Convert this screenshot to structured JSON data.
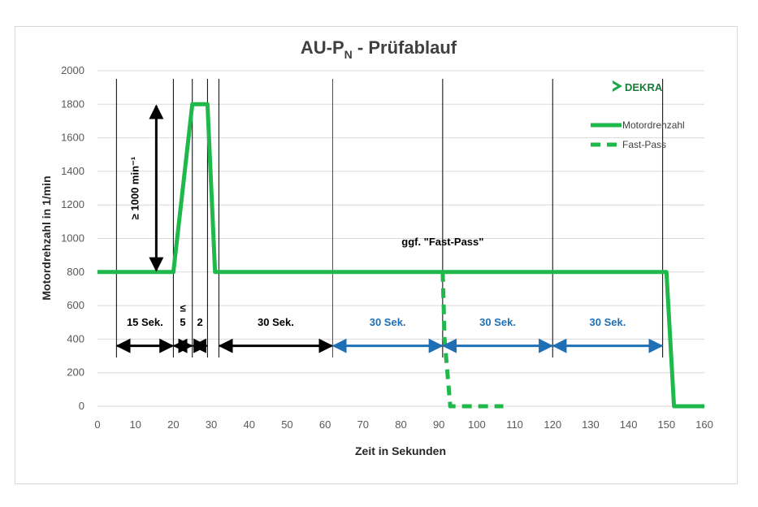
{
  "chart_data": {
    "type": "line",
    "title": {
      "main": "AU-P",
      "sub": "N",
      "rest": " - Prüfablauf"
    },
    "xlabel": "Zeit in Sekunden",
    "ylabel": "Motordrehzahl  in 1/min",
    "xlim": [
      0,
      160
    ],
    "ylim": [
      0,
      2000
    ],
    "xticks": [
      "0",
      "10",
      "20",
      "30",
      "40",
      "50",
      "60",
      "70",
      "80",
      "90",
      "100",
      "110",
      "120",
      "130",
      "140",
      "150",
      "160"
    ],
    "yticks": [
      "0",
      "200",
      "400",
      "600",
      "800",
      "1000",
      "1200",
      "1400",
      "1600",
      "1800",
      "2000"
    ],
    "legend_position": "top-right",
    "logo": "DEKRA",
    "colors": {
      "green": "#1fb84a",
      "blue": "#1f6fb5",
      "black": "#000000",
      "red": "#ff0000"
    },
    "series": [
      {
        "name": "Motordrehzahl",
        "style": "solid",
        "points": [
          [
            0,
            800
          ],
          [
            20,
            800
          ],
          [
            25,
            1800
          ],
          [
            29,
            1800
          ],
          [
            31,
            800
          ],
          [
            150,
            800
          ],
          [
            152,
            0
          ],
          [
            160,
            0
          ]
        ]
      },
      {
        "name": "Fast-Pass",
        "style": "dashed",
        "points": [
          [
            91,
            800
          ],
          [
            91.5,
            400
          ],
          [
            93,
            0
          ],
          [
            107,
            0
          ]
        ]
      }
    ],
    "vertical_lines": [
      {
        "x": 5,
        "color": "black"
      },
      {
        "x": 20,
        "color": "black"
      },
      {
        "x": 25,
        "color": "black"
      },
      {
        "x": 29,
        "color": "black"
      },
      {
        "x": 32,
        "color": "black"
      },
      {
        "x": 62,
        "color": "red"
      },
      {
        "x": 91,
        "color": "black"
      },
      {
        "x": 120,
        "color": "black"
      },
      {
        "x": 149,
        "color": "black"
      }
    ],
    "annotations": [
      {
        "text": "15 Sek.",
        "x": 12.5,
        "y": 480,
        "color": "black"
      },
      {
        "text": "≤",
        "x": 22.5,
        "y": 565,
        "color": "black"
      },
      {
        "text": "5",
        "x": 22.5,
        "y": 480,
        "color": "black"
      },
      {
        "text": "2",
        "x": 27,
        "y": 480,
        "color": "black"
      },
      {
        "text": "30 Sek.",
        "x": 47,
        "y": 480,
        "color": "black"
      },
      {
        "text": "30 Sek.",
        "x": 76.5,
        "y": 480,
        "color": "blue"
      },
      {
        "text": "30 Sek.",
        "x": 105.5,
        "y": 480,
        "color": "blue"
      },
      {
        "text": "30 Sek.",
        "x": 134.5,
        "y": 480,
        "color": "blue"
      },
      {
        "text": "ggf. \"Fast-Pass\"",
        "x": 91,
        "y": 960,
        "color": "black"
      },
      {
        "text": "≥ 1000 min⁻¹",
        "x": 12.5,
        "y": 1300,
        "color": "black",
        "rotate": true
      }
    ],
    "arrows": [
      {
        "x1": 5,
        "x2": 20,
        "y": 360,
        "color": "black"
      },
      {
        "x1": 20,
        "x2": 25,
        "y": 360,
        "color": "black"
      },
      {
        "x1": 25,
        "x2": 29,
        "y": 360,
        "color": "black"
      },
      {
        "x1": 32,
        "x2": 62,
        "y": 360,
        "color": "black"
      },
      {
        "x1": 62,
        "x2": 91,
        "y": 360,
        "color": "blue"
      },
      {
        "x1": 91,
        "x2": 120,
        "y": 360,
        "color": "blue"
      },
      {
        "x1": 120,
        "x2": 149,
        "y": 360,
        "color": "blue"
      },
      {
        "vertical": true,
        "x": 15.5,
        "y1": 800,
        "y2": 1800,
        "color": "black"
      }
    ]
  }
}
